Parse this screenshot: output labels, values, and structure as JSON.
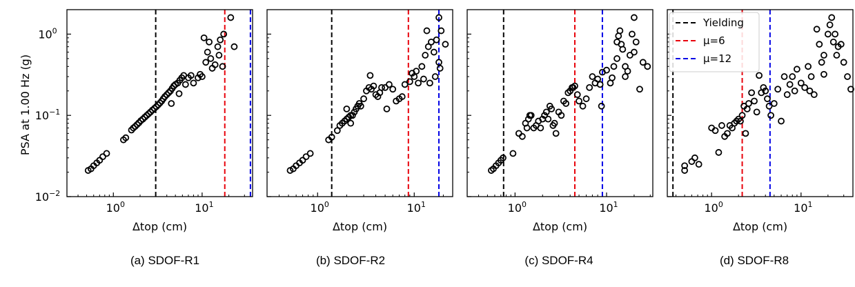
{
  "figure": {
    "captions": [
      "(a) SDOF-R1",
      "(b) SDOF-R2",
      "(c) SDOF-R4",
      "(d) SDOF-R8"
    ],
    "ylabel": "PSA at 1.00 Hz (g)",
    "xlabel": "Δtop (cm)"
  },
  "colors": {
    "yielding": "#000000",
    "mu6": "#e8000b",
    "mu12": "#0000e6",
    "marker": "#000000"
  },
  "chart_data": [
    {
      "type": "scatter",
      "caption": "(a) SDOF-R1",
      "xlabel": "Δtop (cm)",
      "ylabel": "PSA at 1.00 Hz (g)",
      "xscale": "log",
      "yscale": "log",
      "xlim": [
        0.3,
        37
      ],
      "ylim": [
        0.01,
        2.0
      ],
      "xticks": [
        1,
        10
      ],
      "xtick_labels": [
        "10^0",
        "10^1"
      ],
      "yticks": [
        0.01,
        0.1,
        1
      ],
      "ytick_labels": [
        "10^-2",
        "10^-1",
        "10^0"
      ],
      "vlines": [
        {
          "label": "Yielding",
          "x": 3.0,
          "color": "#000000"
        },
        {
          "label": "μ=6",
          "x": 18.0,
          "color": "#e8000b"
        },
        {
          "label": "μ=12",
          "x": 35.0,
          "color": "#0000e6"
        }
      ],
      "points": [
        [
          0.52,
          0.021
        ],
        [
          0.56,
          0.022
        ],
        [
          0.6,
          0.024
        ],
        [
          0.65,
          0.026
        ],
        [
          0.7,
          0.028
        ],
        [
          0.76,
          0.031
        ],
        [
          0.84,
          0.034
        ],
        [
          1.3,
          0.05
        ],
        [
          1.38,
          0.053
        ],
        [
          1.6,
          0.066
        ],
        [
          1.68,
          0.07
        ],
        [
          1.76,
          0.073
        ],
        [
          1.85,
          0.077
        ],
        [
          1.94,
          0.081
        ],
        [
          2.04,
          0.086
        ],
        [
          2.15,
          0.09
        ],
        [
          2.26,
          0.095
        ],
        [
          2.38,
          0.1
        ],
        [
          2.5,
          0.105
        ],
        [
          2.62,
          0.11
        ],
        [
          2.75,
          0.116
        ],
        [
          2.9,
          0.122
        ],
        [
          3.05,
          0.128
        ],
        [
          3.2,
          0.135
        ],
        [
          3.35,
          0.142
        ],
        [
          3.5,
          0.15
        ],
        [
          3.65,
          0.16
        ],
        [
          3.8,
          0.17
        ],
        [
          4.0,
          0.18
        ],
        [
          4.2,
          0.19
        ],
        [
          4.4,
          0.2
        ],
        [
          4.6,
          0.215
        ],
        [
          4.8,
          0.23
        ],
        [
          5.0,
          0.24
        ],
        [
          5.3,
          0.25
        ],
        [
          5.6,
          0.27
        ],
        [
          5.9,
          0.29
        ],
        [
          6.2,
          0.31
        ],
        [
          4.5,
          0.14
        ],
        [
          5.5,
          0.185
        ],
        [
          6.5,
          0.24
        ],
        [
          7.0,
          0.29
        ],
        [
          7.5,
          0.31
        ],
        [
          8.0,
          0.25
        ],
        [
          9.0,
          0.29
        ],
        [
          9.5,
          0.32
        ],
        [
          10.0,
          0.3
        ],
        [
          11.0,
          0.45
        ],
        [
          11.5,
          0.6
        ],
        [
          12.0,
          0.8
        ],
        [
          12.5,
          0.5
        ],
        [
          13.0,
          0.38
        ],
        [
          14.0,
          0.42
        ],
        [
          15.0,
          0.7
        ],
        [
          16.0,
          0.85
        ],
        [
          17.0,
          0.4
        ],
        [
          15.5,
          0.55
        ],
        [
          10.5,
          0.9
        ],
        [
          17.5,
          1.0
        ],
        [
          21.0,
          1.6
        ],
        [
          23.0,
          0.7
        ]
      ]
    },
    {
      "type": "scatter",
      "caption": "(b) SDOF-R2",
      "xlabel": "Δtop (cm)",
      "ylabel": "",
      "xscale": "log",
      "yscale": "log",
      "xlim": [
        0.3,
        25
      ],
      "ylim": [
        0.01,
        2.0
      ],
      "xticks": [
        1,
        10
      ],
      "xtick_labels": [
        "10^0",
        "10^1"
      ],
      "yticks": [
        0.01,
        0.1,
        1
      ],
      "ytick_labels": [
        "",
        "",
        ""
      ],
      "vlines": [
        {
          "label": "Yielding",
          "x": 1.4,
          "color": "#000000"
        },
        {
          "label": "μ=6",
          "x": 8.7,
          "color": "#e8000b"
        },
        {
          "label": "μ=12",
          "x": 18.0,
          "color": "#0000e6"
        }
      ],
      "points": [
        [
          0.52,
          0.021
        ],
        [
          0.56,
          0.022
        ],
        [
          0.6,
          0.024
        ],
        [
          0.65,
          0.026
        ],
        [
          0.7,
          0.028
        ],
        [
          0.76,
          0.031
        ],
        [
          0.84,
          0.034
        ],
        [
          1.3,
          0.05
        ],
        [
          1.4,
          0.054
        ],
        [
          1.6,
          0.065
        ],
        [
          1.7,
          0.075
        ],
        [
          1.8,
          0.08
        ],
        [
          1.9,
          0.085
        ],
        [
          2.0,
          0.09
        ],
        [
          2.1,
          0.095
        ],
        [
          2.2,
          0.1
        ],
        [
          2.3,
          0.1
        ],
        [
          2.4,
          0.11
        ],
        [
          2.5,
          0.12
        ],
        [
          2.6,
          0.13
        ],
        [
          2.7,
          0.14
        ],
        [
          2.8,
          0.13
        ],
        [
          3.0,
          0.16
        ],
        [
          3.2,
          0.2
        ],
        [
          3.4,
          0.22
        ],
        [
          3.6,
          0.21
        ],
        [
          3.8,
          0.23
        ],
        [
          4.0,
          0.18
        ],
        [
          4.2,
          0.17
        ],
        [
          4.4,
          0.19
        ],
        [
          4.6,
          0.22
        ],
        [
          5.0,
          0.22
        ],
        [
          5.5,
          0.24
        ],
        [
          6.0,
          0.21
        ],
        [
          6.5,
          0.15
        ],
        [
          7.0,
          0.16
        ],
        [
          7.5,
          0.17
        ],
        [
          8.0,
          0.24
        ],
        [
          9.0,
          0.26
        ],
        [
          9.5,
          0.33
        ],
        [
          10.0,
          0.3
        ],
        [
          10.5,
          0.35
        ],
        [
          3.5,
          0.31
        ],
        [
          2.2,
          0.08
        ],
        [
          2.0,
          0.12
        ],
        [
          5.2,
          0.12
        ],
        [
          12.0,
          0.4
        ],
        [
          13.0,
          0.55
        ],
        [
          14.0,
          0.7
        ],
        [
          15.0,
          0.8
        ],
        [
          16.0,
          0.6
        ],
        [
          17.0,
          0.85
        ],
        [
          11.0,
          0.25
        ],
        [
          12.5,
          0.28
        ],
        [
          14.5,
          0.25
        ],
        [
          16.5,
          0.3
        ],
        [
          18.0,
          0.45
        ],
        [
          18.5,
          0.38
        ],
        [
          19.0,
          1.1
        ],
        [
          21.0,
          0.75
        ],
        [
          13.5,
          1.1
        ],
        [
          18.0,
          1.6
        ]
      ]
    },
    {
      "type": "scatter",
      "caption": "(c) SDOF-R4",
      "xlabel": "Δtop (cm)",
      "ylabel": "",
      "xscale": "log",
      "yscale": "log",
      "xlim": [
        0.3,
        32
      ],
      "ylim": [
        0.01,
        2.0
      ],
      "xticks": [
        1,
        10
      ],
      "xtick_labels": [
        "10^0",
        "10^1"
      ],
      "yticks": [
        0.01,
        0.1,
        1
      ],
      "ytick_labels": [
        "",
        "",
        ""
      ],
      "vlines": [
        {
          "label": "Yielding",
          "x": 0.75,
          "color": "#000000"
        },
        {
          "label": "μ=6",
          "x": 4.5,
          "color": "#e8000b"
        },
        {
          "label": "μ=12",
          "x": 9.0,
          "color": "#0000e6"
        }
      ],
      "points": [
        [
          0.55,
          0.021
        ],
        [
          0.58,
          0.022
        ],
        [
          0.62,
          0.024
        ],
        [
          0.66,
          0.026
        ],
        [
          0.7,
          0.028
        ],
        [
          0.74,
          0.03
        ],
        [
          0.95,
          0.034
        ],
        [
          1.1,
          0.06
        ],
        [
          1.2,
          0.055
        ],
        [
          1.3,
          0.08
        ],
        [
          1.4,
          0.09
        ],
        [
          1.5,
          0.1
        ],
        [
          1.6,
          0.07
        ],
        [
          1.7,
          0.075
        ],
        [
          1.8,
          0.085
        ],
        [
          1.9,
          0.07
        ],
        [
          2.0,
          0.09
        ],
        [
          2.1,
          0.1
        ],
        [
          2.2,
          0.11
        ],
        [
          2.3,
          0.09
        ],
        [
          2.4,
          0.13
        ],
        [
          2.5,
          0.12
        ],
        [
          2.6,
          0.075
        ],
        [
          2.7,
          0.08
        ],
        [
          2.8,
          0.06
        ],
        [
          3.0,
          0.11
        ],
        [
          3.2,
          0.1
        ],
        [
          3.4,
          0.15
        ],
        [
          3.6,
          0.14
        ],
        [
          3.8,
          0.19
        ],
        [
          4.0,
          0.2
        ],
        [
          4.2,
          0.22
        ],
        [
          4.5,
          0.23
        ],
        [
          4.8,
          0.18
        ],
        [
          5.0,
          0.15
        ],
        [
          5.5,
          0.13
        ],
        [
          6.0,
          0.16
        ],
        [
          6.5,
          0.22
        ],
        [
          7.0,
          0.3
        ],
        [
          7.5,
          0.25
        ],
        [
          8.0,
          0.28
        ],
        [
          8.5,
          0.24
        ],
        [
          8.8,
          0.13
        ],
        [
          9.0,
          0.34
        ],
        [
          10.0,
          0.36
        ],
        [
          11.0,
          0.25
        ],
        [
          11.5,
          0.29
        ],
        [
          12.0,
          0.4
        ],
        [
          13.0,
          0.5
        ],
        [
          13.5,
          0.95
        ],
        [
          14.0,
          1.1
        ],
        [
          14.5,
          0.75
        ],
        [
          15.0,
          0.65
        ],
        [
          16.0,
          0.4
        ],
        [
          17.0,
          0.35
        ],
        [
          18.0,
          0.55
        ],
        [
          19.0,
          1.0
        ],
        [
          20.0,
          0.6
        ],
        [
          21.0,
          0.8
        ],
        [
          23.0,
          0.21
        ],
        [
          25.0,
          0.45
        ],
        [
          28.0,
          0.4
        ],
        [
          13.0,
          0.8
        ],
        [
          20.0,
          1.6
        ],
        [
          16.0,
          0.3
        ],
        [
          4.3,
          0.22
        ],
        [
          1.35,
          0.07
        ],
        [
          1.45,
          0.1
        ]
      ]
    },
    {
      "type": "scatter",
      "caption": "(d) SDOF-R8",
      "xlabel": "Δtop (cm)",
      "ylabel": "",
      "xscale": "log",
      "yscale": "log",
      "xlim": [
        0.32,
        38
      ],
      "ylim": [
        0.01,
        2.0
      ],
      "xticks": [
        1,
        10
      ],
      "xtick_labels": [
        "10^0",
        "10^1"
      ],
      "yticks": [
        0.01,
        0.1,
        1
      ],
      "ytick_labels": [
        "",
        "",
        ""
      ],
      "legend": {
        "position": "top-left",
        "entries": [
          "Yielding",
          "μ=6",
          "μ=12"
        ]
      },
      "vlines": [
        {
          "label": "Yielding",
          "x": 0.37,
          "color": "#000000"
        },
        {
          "label": "μ=6",
          "x": 2.2,
          "color": "#e8000b"
        },
        {
          "label": "μ=12",
          "x": 4.5,
          "color": "#0000e6"
        }
      ],
      "points": [
        [
          0.5,
          0.021
        ],
        [
          0.5,
          0.024
        ],
        [
          0.6,
          0.027
        ],
        [
          0.65,
          0.03
        ],
        [
          0.72,
          0.025
        ],
        [
          1.0,
          0.07
        ],
        [
          1.1,
          0.065
        ],
        [
          1.2,
          0.035
        ],
        [
          1.3,
          0.075
        ],
        [
          1.4,
          0.055
        ],
        [
          1.5,
          0.06
        ],
        [
          1.6,
          0.075
        ],
        [
          1.7,
          0.07
        ],
        [
          1.8,
          0.08
        ],
        [
          1.9,
          0.085
        ],
        [
          2.0,
          0.09
        ],
        [
          2.1,
          0.085
        ],
        [
          2.2,
          0.1
        ],
        [
          2.3,
          0.13
        ],
        [
          2.4,
          0.06
        ],
        [
          2.5,
          0.12
        ],
        [
          2.6,
          0.14
        ],
        [
          2.8,
          0.19
        ],
        [
          3.0,
          0.15
        ],
        [
          3.2,
          0.11
        ],
        [
          3.4,
          0.31
        ],
        [
          3.6,
          0.19
        ],
        [
          3.8,
          0.22
        ],
        [
          4.0,
          0.2
        ],
        [
          4.2,
          0.16
        ],
        [
          4.4,
          0.13
        ],
        [
          4.6,
          0.1
        ],
        [
          5.0,
          0.14
        ],
        [
          5.5,
          0.21
        ],
        [
          6.0,
          0.085
        ],
        [
          6.5,
          0.3
        ],
        [
          7.0,
          0.18
        ],
        [
          7.5,
          0.24
        ],
        [
          8.0,
          0.3
        ],
        [
          8.5,
          0.2
        ],
        [
          9.0,
          0.37
        ],
        [
          10.0,
          0.25
        ],
        [
          11.0,
          0.22
        ],
        [
          12.0,
          0.4
        ],
        [
          13.0,
          0.3
        ],
        [
          14.0,
          0.18
        ],
        [
          15.0,
          1.15
        ],
        [
          16.0,
          0.75
        ],
        [
          17.0,
          0.45
        ],
        [
          18.0,
          0.55
        ],
        [
          20.0,
          1.0
        ],
        [
          22.0,
          1.6
        ],
        [
          24.0,
          1.0
        ],
        [
          26.0,
          0.7
        ],
        [
          28.0,
          0.75
        ],
        [
          30.0,
          0.45
        ],
        [
          33.0,
          0.3
        ],
        [
          36.0,
          0.21
        ],
        [
          18.0,
          0.32
        ],
        [
          21.0,
          1.3
        ],
        [
          23.0,
          0.8
        ],
        [
          12.5,
          0.2
        ],
        [
          25.0,
          0.55
        ]
      ]
    }
  ]
}
